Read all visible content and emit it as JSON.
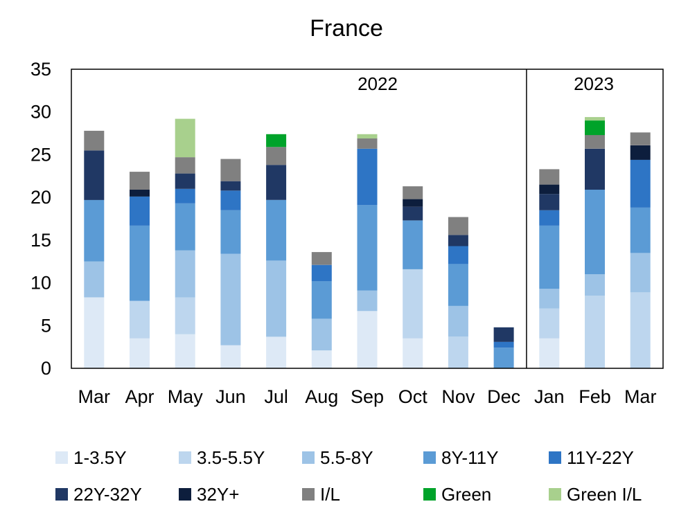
{
  "chart_data": {
    "type": "bar",
    "stacked": true,
    "title": "France",
    "xlabel": "",
    "ylabel": "",
    "ylim": [
      0,
      35
    ],
    "yticks": [
      0,
      5,
      10,
      15,
      20,
      25,
      30,
      35
    ],
    "grid": false,
    "legend_position": "bottom",
    "year_groups": [
      {
        "label": "2022",
        "start": 0,
        "end": 9
      },
      {
        "label": "2023",
        "start": 10,
        "end": 12
      }
    ],
    "categories": [
      "Mar",
      "Apr",
      "May",
      "Jun",
      "Jul",
      "Aug",
      "Sep",
      "Oct",
      "Nov",
      "Dec",
      "Jan",
      "Feb",
      "Mar"
    ],
    "series": [
      {
        "name": "1-3.5Y",
        "color": "#dde9f6",
        "values": [
          8.3,
          3.5,
          4.0,
          2.7,
          3.7,
          2.1,
          6.7,
          3.5,
          0,
          0,
          3.5,
          0,
          0
        ]
      },
      {
        "name": "3.5-5.5Y",
        "color": "#bdd6ee",
        "values": [
          0,
          4.4,
          4.3,
          0,
          0,
          0,
          0,
          8.1,
          3.7,
          0,
          3.5,
          8.5,
          8.9
        ]
      },
      {
        "name": "5.5-8Y",
        "color": "#9dc3e6",
        "values": [
          4.2,
          0,
          5.5,
          10.7,
          8.9,
          3.7,
          2.4,
          0,
          3.6,
          0,
          2.3,
          2.5,
          4.6
        ]
      },
      {
        "name": "8Y-11Y",
        "color": "#5b9bd5",
        "values": [
          7.2,
          8.8,
          5.5,
          5.1,
          7.1,
          4.4,
          10.0,
          5.7,
          4.9,
          2.4,
          7.4,
          9.9,
          5.3
        ]
      },
      {
        "name": "11Y-22Y",
        "color": "#2e75c5",
        "values": [
          0,
          3.4,
          1.7,
          2.3,
          0,
          1.9,
          6.6,
          0,
          2.1,
          0.7,
          1.8,
          0,
          5.6
        ]
      },
      {
        "name": "22Y-32Y",
        "color": "#203864",
        "values": [
          5.8,
          0,
          1.8,
          1.1,
          4.1,
          0,
          0,
          1.6,
          1.3,
          1.7,
          1.9,
          4.8,
          0
        ]
      },
      {
        "name": "32Y+",
        "color": "#0d1e3d",
        "values": [
          0,
          0.8,
          0,
          0,
          0,
          0,
          0,
          0.9,
          0,
          0,
          1.1,
          0,
          1.7
        ]
      },
      {
        "name": "I/L",
        "color": "#808080",
        "values": [
          2.3,
          2.1,
          1.9,
          2.6,
          2.1,
          1.5,
          1.2,
          1.5,
          2.1,
          0,
          1.8,
          1.6,
          1.5
        ]
      },
      {
        "name": "Green",
        "color": "#00a32a",
        "values": [
          0,
          0,
          0,
          0,
          1.5,
          0,
          0,
          0,
          0,
          0,
          0,
          1.7,
          0
        ]
      },
      {
        "name": "Green I/L",
        "color": "#a8d08d",
        "values": [
          0,
          0,
          4.5,
          0,
          0,
          0,
          0.5,
          0,
          0,
          0,
          0,
          0.4,
          0
        ]
      }
    ]
  }
}
